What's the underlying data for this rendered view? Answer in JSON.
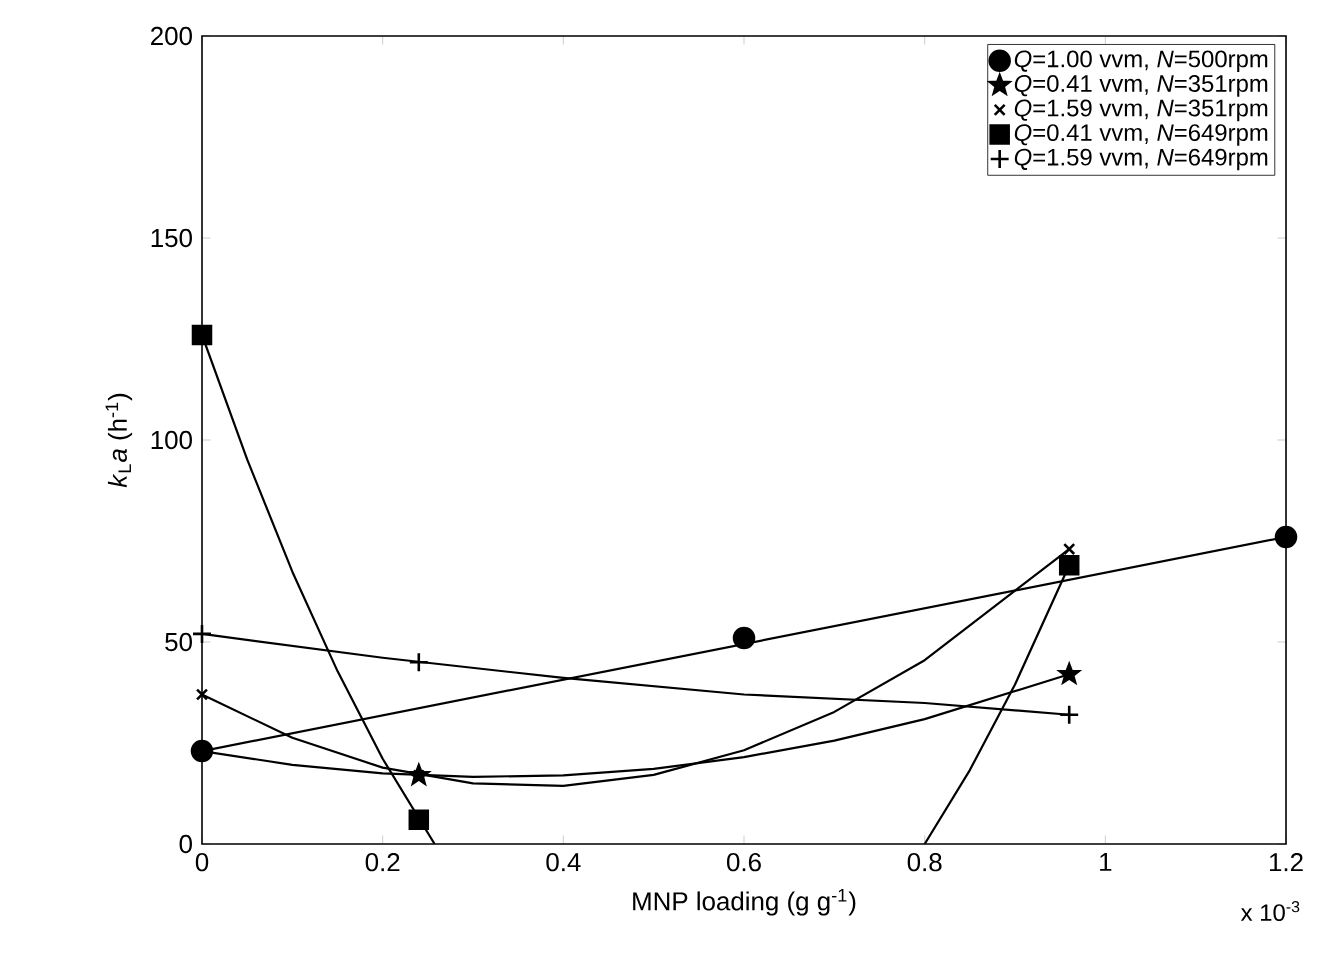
{
  "chart_data": {
    "type": "scatter",
    "xlabel": "MNP loading (g g$^{-1}$)",
    "ylabel": "*k*$_{L}$*a* (h$^{-1}$)",
    "xlim": [
      0,
      1.2
    ],
    "ylim": [
      0,
      200
    ],
    "xticks": [
      0,
      0.2,
      0.4,
      0.6,
      0.8,
      1,
      1.2
    ],
    "yticks": [
      0,
      50,
      100,
      150,
      200
    ],
    "grid": false,
    "legend": "top right",
    "line_style": "solid",
    "annotations": [
      "x 10$^{-3}$"
    ],
    "series": [
      {
        "name": "*Q*=1.00 vvm, *N*=500rpm",
        "color": "#000000",
        "marker": "circle",
        "x": [
          0,
          0.6,
          1.2
        ],
        "values": [
          23,
          51,
          76
        ]
      },
      {
        "name": "*Q*=0.41 vvm, *N*=351rpm",
        "color": "#000000",
        "marker": "star",
        "x": [
          0.24,
          0.96
        ],
        "values": [
          17,
          42
        ]
      },
      {
        "name": "*Q*=1.59 vvm, *N*=351rpm",
        "color": "#000000",
        "marker": "cross",
        "x": [
          0,
          0.24,
          0.96
        ],
        "values": [
          37,
          17,
          73
        ]
      },
      {
        "name": "*Q*=0.41 vvm, *N*=649rpm",
        "color": "#000000",
        "marker": "square",
        "x": [
          0,
          0.24,
          0.96
        ],
        "values": [
          126,
          6,
          69
        ]
      },
      {
        "name": "*Q*=1.59 vvm, *N*=649rpm",
        "color": "#000000",
        "marker": "plus",
        "x": [
          0,
          0.24,
          0.96
        ],
        "values": [
          52,
          45,
          32
        ]
      },
      {
        "type": "line",
        "color": "#000000",
        "marker": "none",
        "x": [
          0,
          1.2
        ],
        "values": [
          23,
          76
        ]
      },
      {
        "type": "line",
        "color": "#000000",
        "marker": "none",
        "x": [
          0,
          0.1,
          0.2,
          0.3,
          0.4,
          0.5,
          0.6,
          0.7,
          0.8,
          0.96
        ],
        "values": [
          23,
          19.6,
          17.5,
          16.6,
          17,
          18.6,
          21.5,
          25.6,
          30.9,
          42
        ]
      },
      {
        "type": "line",
        "color": "#000000",
        "marker": "none",
        "x": [
          0,
          0.1,
          0.2,
          0.3,
          0.4,
          0.5,
          0.6,
          0.7,
          0.8,
          0.96
        ],
        "values": [
          37,
          26.3,
          18.9,
          15,
          14.4,
          17.1,
          23.2,
          32.7,
          45.5,
          73
        ]
      },
      {
        "type": "line",
        "color": "#000000",
        "marker": "none",
        "x": [
          0,
          0.05,
          0.1,
          0.15,
          0.2,
          0.2575,
          null,
          0.8,
          0.85,
          0.9,
          0.96
        ],
        "values": [
          126,
          95.2,
          67.4,
          42.8,
          21.1,
          0,
          null,
          0,
          18.3,
          39.5,
          69
        ]
      },
      {
        "type": "line",
        "color": "#000000",
        "marker": "none",
        "x": [
          0,
          0.2,
          0.4,
          0.6,
          0.8,
          0.96
        ],
        "values": [
          52,
          46.1,
          41.1,
          37,
          34.9,
          32
        ]
      }
    ]
  }
}
